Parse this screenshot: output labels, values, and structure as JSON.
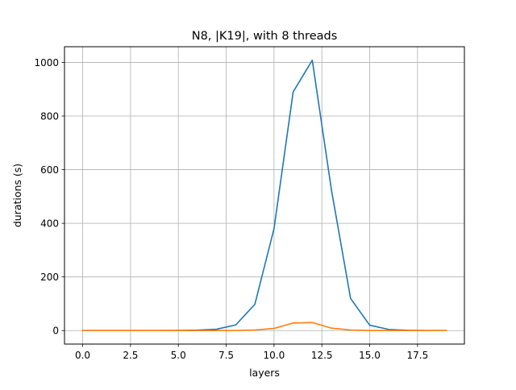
{
  "chart_data": {
    "type": "line",
    "title": "N8, |K19|, with 8 threads",
    "xlabel": "layers",
    "ylabel": "durations (s)",
    "xlim": [
      -0.95,
      19.95
    ],
    "ylim": [
      -50.4,
      1058.4
    ],
    "grid": true,
    "x_ticks": [
      0.0,
      2.5,
      5.0,
      7.5,
      10.0,
      12.5,
      15.0,
      17.5
    ],
    "x_tick_labels": [
      "0.0",
      "2.5",
      "5.0",
      "7.5",
      "10.0",
      "12.5",
      "15.0",
      "17.5"
    ],
    "y_ticks": [
      0,
      200,
      400,
      600,
      800,
      1000
    ],
    "y_tick_labels": [
      "0",
      "200",
      "400",
      "600",
      "800",
      "1000"
    ],
    "x": [
      0,
      1,
      2,
      3,
      4,
      5,
      6,
      7,
      8,
      9,
      10,
      11,
      12,
      13,
      14,
      15,
      16,
      17,
      18,
      19
    ],
    "series": [
      {
        "color": "#1f77b4",
        "values": [
          0,
          0,
          0,
          0,
          0,
          0.5,
          1.5,
          5,
          21,
          98,
          380,
          890,
          1008,
          525,
          120,
          20,
          4,
          1,
          0,
          0
        ]
      },
      {
        "color": "#ff7f0e",
        "values": [
          0,
          0,
          0,
          0,
          0,
          0,
          0,
          0,
          0,
          2,
          8,
          28,
          30,
          9,
          2,
          0,
          0,
          0,
          0,
          0
        ]
      }
    ]
  }
}
